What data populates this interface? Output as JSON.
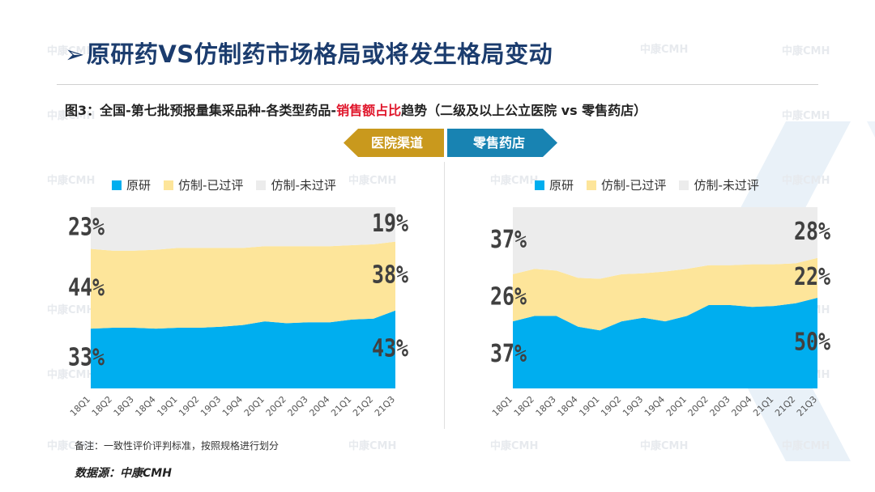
{
  "page": {
    "title_arrow": "➢",
    "title": "原研药VS仿制药市场格局或将发生格局变动",
    "subtitle_pre": "图3：全国-第七批预报量集采品种-各类型药品-",
    "subtitle_highlight": "销售额占比",
    "subtitle_post": "趋势（二级及以上公立医院 vs 零售药店）",
    "tab_left": "医院渠道",
    "tab_right": "零售药店",
    "note": "备注：一致性评价评判标准，按照规格进行划分",
    "source": "数据源：中康CMH",
    "watermark": "中康CMH"
  },
  "colors": {
    "original": "#00aeef",
    "generic_evaluated": "#fde59a",
    "generic_not_evaluated": "#ececec",
    "label": "#404040"
  },
  "chart_data": [
    {
      "type": "area",
      "stacked": true,
      "percent": true,
      "channel": "医院渠道",
      "categories": [
        "18Q1",
        "18Q2",
        "18Q3",
        "18Q4",
        "19Q1",
        "19Q2",
        "19Q3",
        "19Q4",
        "20Q1",
        "20Q2",
        "20Q3",
        "20Q4",
        "21Q1",
        "21Q2",
        "21Q3"
      ],
      "series": [
        {
          "name": "原研",
          "color": "#00aeef",
          "values": [
            33,
            33.5,
            33.5,
            33,
            33.5,
            33.5,
            34,
            35,
            37,
            36,
            36.5,
            36.5,
            38,
            38.5,
            43
          ]
        },
        {
          "name": "仿制-已过评",
          "color": "#fde59a",
          "values": [
            44,
            42.5,
            42.5,
            43.5,
            44,
            44,
            43.5,
            42.5,
            41.5,
            42.5,
            42,
            42,
            41,
            41,
            38
          ]
        },
        {
          "name": "仿制-未过评",
          "color": "#ececec",
          "values": [
            23,
            24,
            24,
            23.5,
            22.5,
            22.5,
            22.5,
            22.5,
            21.5,
            21.5,
            21.5,
            21.5,
            21,
            20.5,
            19
          ]
        }
      ],
      "start_labels": [
        "33%",
        "44%",
        "23%"
      ],
      "end_labels": [
        "43%",
        "38%",
        "19%"
      ],
      "ylim": [
        0,
        100
      ],
      "xlabel": "",
      "ylabel": ""
    },
    {
      "type": "area",
      "stacked": true,
      "percent": true,
      "channel": "零售药店",
      "categories": [
        "18Q1",
        "18Q2",
        "18Q3",
        "18Q4",
        "19Q1",
        "19Q2",
        "19Q3",
        "19Q4",
        "20Q1",
        "20Q2",
        "20Q3",
        "20Q4",
        "21Q1",
        "21Q2",
        "21Q3"
      ],
      "series": [
        {
          "name": "原研",
          "color": "#00aeef",
          "values": [
            37,
            40,
            40,
            34,
            32,
            37,
            39,
            37,
            40,
            46,
            46,
            45,
            45.5,
            47,
            50
          ]
        },
        {
          "name": "仿制-已过评",
          "color": "#fde59a",
          "values": [
            26,
            26,
            25,
            27,
            28.5,
            26,
            24.5,
            27.5,
            26,
            22,
            22,
            23.5,
            23,
            22,
            22
          ]
        },
        {
          "name": "仿制-未过评",
          "color": "#ececec",
          "values": [
            37,
            34,
            35,
            39,
            39.5,
            37,
            36.5,
            35.5,
            34,
            32,
            32,
            31.5,
            31.5,
            31,
            28
          ]
        }
      ],
      "start_labels": [
        "37%",
        "26%",
        "37%"
      ],
      "end_labels": [
        "50%",
        "22%",
        "28%"
      ],
      "ylim": [
        0,
        100
      ],
      "xlabel": "",
      "ylabel": ""
    }
  ]
}
